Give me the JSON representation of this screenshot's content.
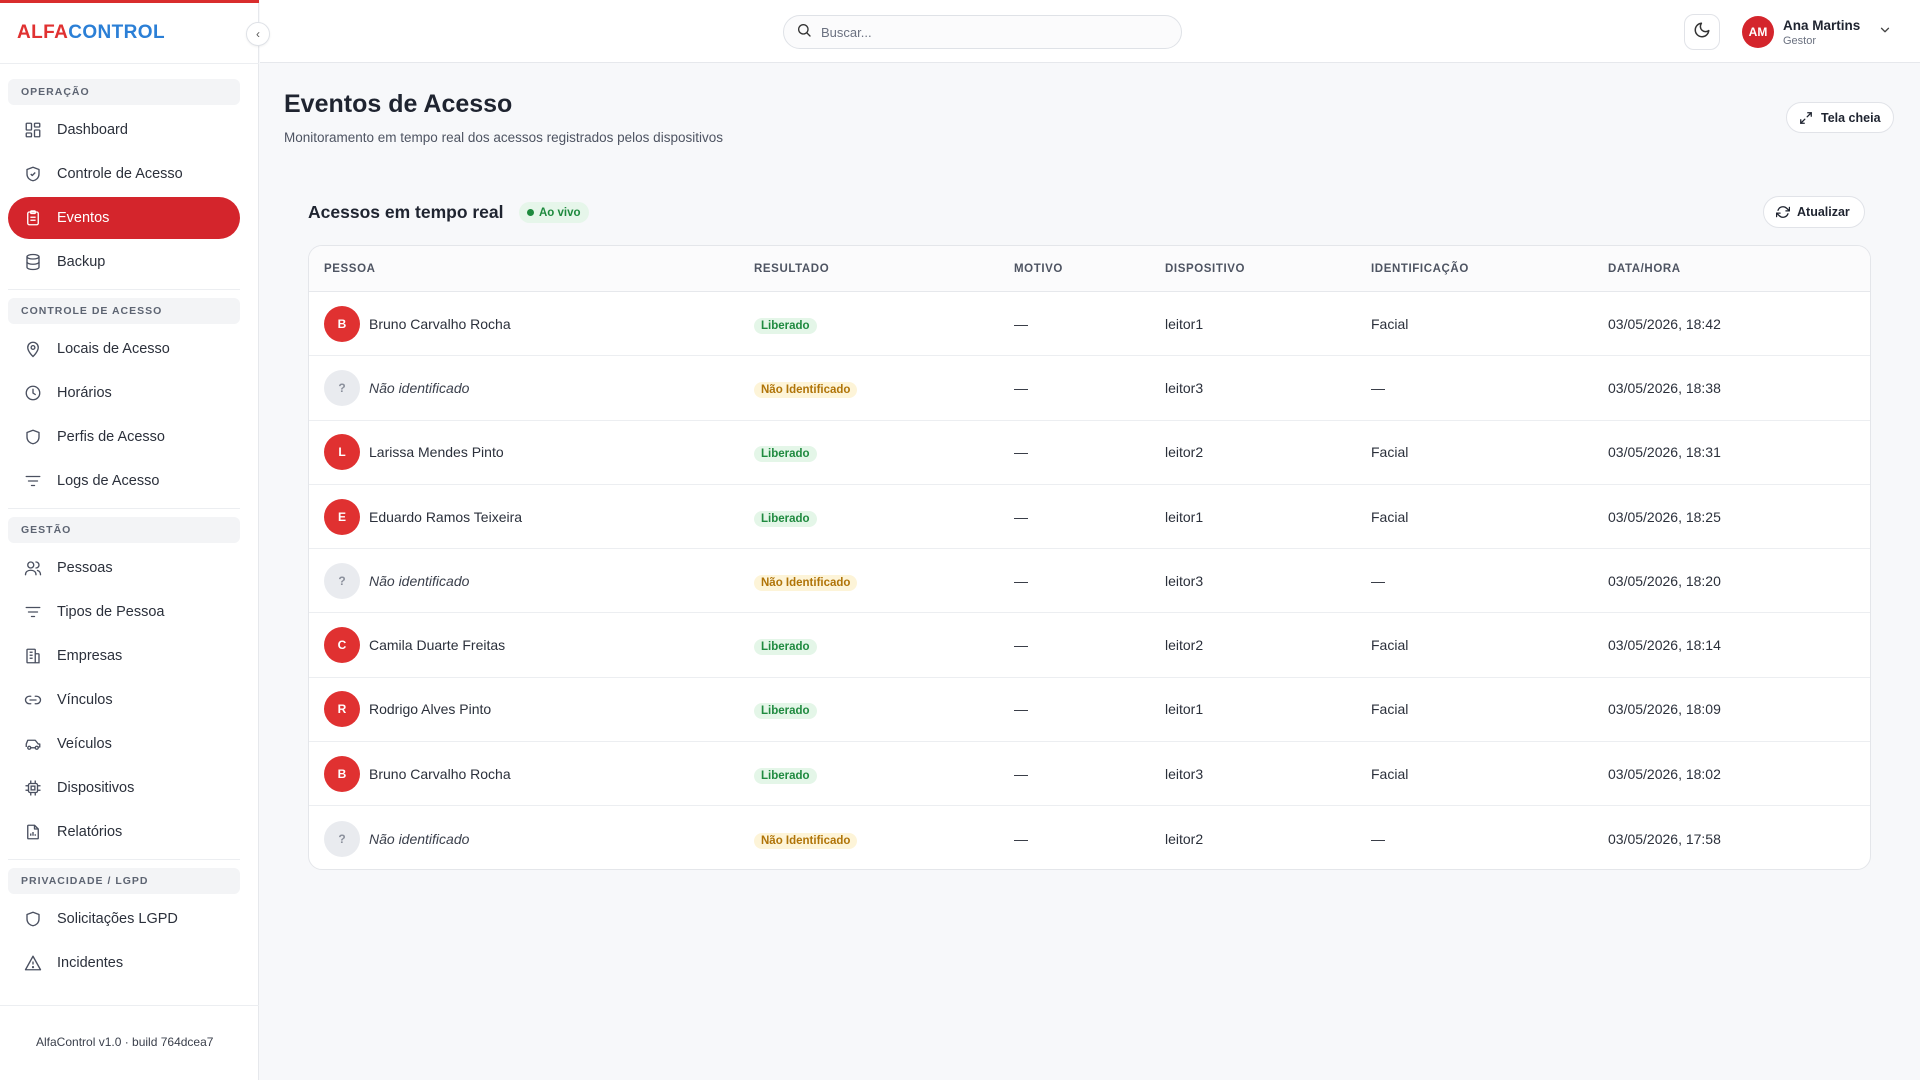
{
  "app": {
    "logo_part1": "ALFA",
    "logo_part2": "CONTROL",
    "collapse_glyph": "‹",
    "version": "AlfaControl v1.0 · build 764dcea7"
  },
  "sidebar": {
    "sections": [
      {
        "title": "OPERAÇÃO",
        "items": [
          {
            "label": "Dashboard",
            "icon": "dashboard-icon",
            "active": false
          },
          {
            "label": "Controle de Acesso",
            "icon": "shield-check-icon",
            "active": false
          },
          {
            "label": "Eventos",
            "icon": "clipboard-icon",
            "active": true
          },
          {
            "label": "Backup",
            "icon": "database-icon",
            "active": false
          }
        ]
      },
      {
        "title": "CONTROLE DE ACESSO",
        "items": [
          {
            "label": "Locais de Acesso",
            "icon": "map-pin-icon",
            "active": false
          },
          {
            "label": "Horários",
            "icon": "clock-icon",
            "active": false
          },
          {
            "label": "Perfis de Acesso",
            "icon": "shield-icon",
            "active": false
          },
          {
            "label": "Logs de Acesso",
            "icon": "filter-icon",
            "active": false
          }
        ]
      },
      {
        "title": "GESTÃO",
        "items": [
          {
            "label": "Pessoas",
            "icon": "users-icon",
            "active": false
          },
          {
            "label": "Tipos de Pessoa",
            "icon": "filter-icon",
            "active": false
          },
          {
            "label": "Empresas",
            "icon": "building-icon",
            "active": false
          },
          {
            "label": "Vínculos",
            "icon": "link-icon",
            "active": false
          },
          {
            "label": "Veículos",
            "icon": "car-icon",
            "active": false
          },
          {
            "label": "Dispositivos",
            "icon": "chip-icon",
            "active": false
          },
          {
            "label": "Relatórios",
            "icon": "file-chart-icon",
            "active": false
          }
        ]
      },
      {
        "title": "PRIVACIDADE / LGPD",
        "items": [
          {
            "label": "Solicitações LGPD",
            "icon": "shield-icon",
            "active": false
          },
          {
            "label": "Incidentes",
            "icon": "alert-triangle-icon",
            "active": false
          }
        ]
      }
    ]
  },
  "header": {
    "search_placeholder": "Buscar...",
    "user": {
      "initials": "AM",
      "name": "Ana Martins",
      "role": "Gestor"
    }
  },
  "main": {
    "title": "Eventos de Acesso",
    "subtitle": "Monitoramento em tempo real dos acessos registrados pelos dispositivos",
    "fullscreen_label": "Tela cheia",
    "card_title": "Acessos em tempo real",
    "live_label": "Ao vivo",
    "refresh_label": "Atualizar",
    "columns": [
      "PESSOA",
      "RESULTADO",
      "MOTIVO",
      "DISPOSITIVO",
      "IDENTIFICAÇÃO",
      "DATA/HORA"
    ],
    "rows": [
      {
        "initial": "B",
        "name": "Bruno Carvalho Rocha",
        "known": true,
        "result": "Liberado",
        "reason": "—",
        "device": "leitor1",
        "identification": "Facial",
        "datetime": "03/05/2026, 18:42"
      },
      {
        "initial": "?",
        "name": "Não identificado",
        "known": false,
        "result": "Não Identificado",
        "reason": "—",
        "device": "leitor3",
        "identification": "—",
        "datetime": "03/05/2026, 18:38"
      },
      {
        "initial": "L",
        "name": "Larissa Mendes Pinto",
        "known": true,
        "result": "Liberado",
        "reason": "—",
        "device": "leitor2",
        "identification": "Facial",
        "datetime": "03/05/2026, 18:31"
      },
      {
        "initial": "E",
        "name": "Eduardo Ramos Teixeira",
        "known": true,
        "result": "Liberado",
        "reason": "—",
        "device": "leitor1",
        "identification": "Facial",
        "datetime": "03/05/2026, 18:25"
      },
      {
        "initial": "?",
        "name": "Não identificado",
        "known": false,
        "result": "Não Identificado",
        "reason": "—",
        "device": "leitor3",
        "identification": "—",
        "datetime": "03/05/2026, 18:20"
      },
      {
        "initial": "C",
        "name": "Camila Duarte Freitas",
        "known": true,
        "result": "Liberado",
        "reason": "—",
        "device": "leitor2",
        "identification": "Facial",
        "datetime": "03/05/2026, 18:14"
      },
      {
        "initial": "R",
        "name": "Rodrigo Alves Pinto",
        "known": true,
        "result": "Liberado",
        "reason": "—",
        "device": "leitor1",
        "identification": "Facial",
        "datetime": "03/05/2026, 18:09"
      },
      {
        "initial": "B",
        "name": "Bruno Carvalho Rocha",
        "known": true,
        "result": "Liberado",
        "reason": "—",
        "device": "leitor3",
        "identification": "Facial",
        "datetime": "03/05/2026, 18:02"
      },
      {
        "initial": "?",
        "name": "Não identificado",
        "known": false,
        "result": "Não Identificado",
        "reason": "—",
        "device": "leitor2",
        "identification": "—",
        "datetime": "03/05/2026, 17:58"
      }
    ]
  },
  "colors": {
    "accent": "#d4252c",
    "brand_blue": "#2b7fd6",
    "success": "#1f8a3f",
    "warning": "#b07408"
  }
}
